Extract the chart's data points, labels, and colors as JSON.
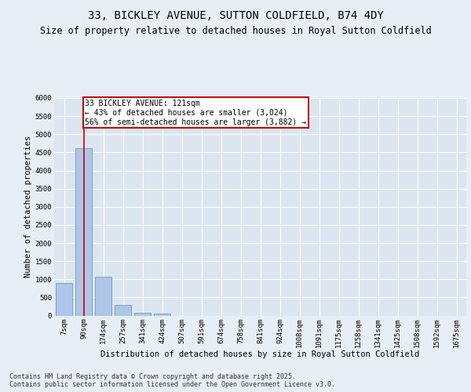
{
  "title": "33, BICKLEY AVENUE, SUTTON COLDFIELD, B74 4DY",
  "subtitle": "Size of property relative to detached houses in Royal Sutton Coldfield",
  "xlabel": "Distribution of detached houses by size in Royal Sutton Coldfield",
  "ylabel": "Number of detached properties",
  "categories": [
    "7sqm",
    "90sqm",
    "174sqm",
    "257sqm",
    "341sqm",
    "424sqm",
    "507sqm",
    "591sqm",
    "674sqm",
    "758sqm",
    "841sqm",
    "924sqm",
    "1008sqm",
    "1091sqm",
    "1175sqm",
    "1258sqm",
    "1341sqm",
    "1425sqm",
    "1508sqm",
    "1592sqm",
    "1675sqm"
  ],
  "values": [
    900,
    4620,
    1080,
    290,
    80,
    60,
    0,
    0,
    0,
    0,
    0,
    0,
    0,
    0,
    0,
    0,
    0,
    0,
    0,
    0,
    0
  ],
  "bar_color": "#aec6e8",
  "bar_edge_color": "#5b8ec4",
  "vline_x": 1.0,
  "vline_color": "#cc0000",
  "annotation_text": "33 BICKLEY AVENUE: 121sqm\n← 43% of detached houses are smaller (3,024)\n56% of semi-detached houses are larger (3,882) →",
  "annotation_box_color": "#ffffff",
  "annotation_box_edge_color": "#cc0000",
  "ylim": [
    0,
    6000
  ],
  "yticks": [
    0,
    500,
    1000,
    1500,
    2000,
    2500,
    3000,
    3500,
    4000,
    4500,
    5000,
    5500,
    6000
  ],
  "bg_color": "#e8eef5",
  "plot_bg_color": "#dce6f0",
  "footer": "Contains HM Land Registry data © Crown copyright and database right 2025.\nContains public sector information licensed under the Open Government Licence v3.0.",
  "title_fontsize": 10,
  "subtitle_fontsize": 8.5,
  "axis_label_fontsize": 7.5,
  "tick_fontsize": 6.5,
  "annotation_fontsize": 7,
  "footer_fontsize": 6
}
